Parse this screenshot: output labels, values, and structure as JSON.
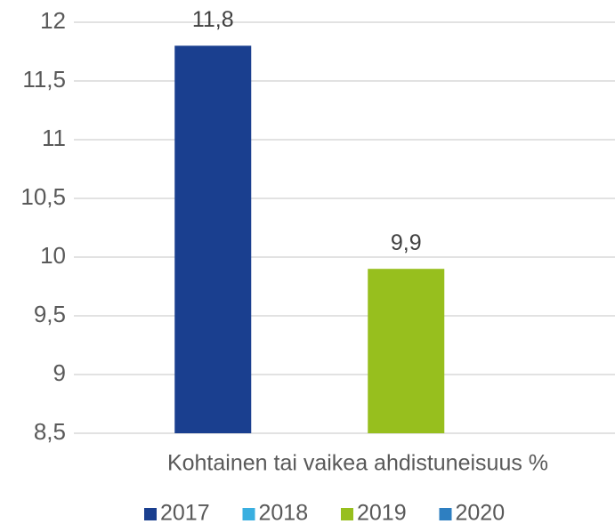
{
  "chart_data": {
    "type": "bar",
    "categories": [
      "Kohtainen tai vaikea ahdistuneisuus %"
    ],
    "series": [
      {
        "name": "2017",
        "color": "#1a3f8f",
        "values": [
          11.8
        ],
        "value_labels": [
          "11,8"
        ]
      },
      {
        "name": "2018",
        "color": "#3aafe0",
        "values": [
          null
        ]
      },
      {
        "name": "2019",
        "color": "#97bf1e",
        "values": [
          9.9
        ],
        "value_labels": [
          "9,9"
        ]
      },
      {
        "name": "2020",
        "color": "#2e7fc1",
        "values": [
          null
        ]
      }
    ],
    "ylim": [
      8.5,
      12
    ],
    "yticks": [
      {
        "value": 8.5,
        "label": "8,5"
      },
      9,
      {
        "value": 9.5,
        "label": "9,5"
      },
      10,
      {
        "value": 10.5,
        "label": "10,5"
      },
      11,
      {
        "value": 11.5,
        "label": "11,5"
      },
      12
    ],
    "grid": true,
    "legend": "bottom"
  }
}
